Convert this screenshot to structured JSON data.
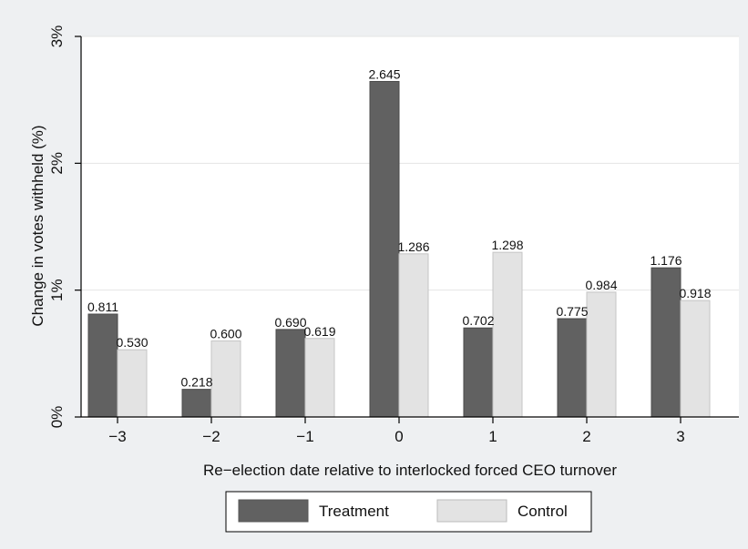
{
  "chart_data": {
    "type": "bar",
    "categories": [
      "−3",
      "−2",
      "−1",
      "0",
      "1",
      "2",
      "3"
    ],
    "series": [
      {
        "name": "Treatment",
        "values": [
          0.811,
          0.218,
          0.69,
          2.645,
          0.702,
          0.775,
          1.176
        ],
        "color": "#616161"
      },
      {
        "name": "Control",
        "values": [
          0.53,
          0.6,
          0.619,
          1.286,
          1.298,
          0.984,
          0.918
        ],
        "color": "#e3e3e3"
      }
    ],
    "data_labels": {
      "Treatment": [
        "0.811",
        "0.218",
        "0.690",
        "2.645",
        "0.702",
        "0.775",
        "1.176"
      ],
      "Control": [
        "0.530",
        "0.600",
        "0.619",
        "1.286",
        "1.298",
        "0.984",
        "0.918"
      ]
    },
    "title": "",
    "xlabel": "Re−election date relative to interlocked forced CEO turnover",
    "ylabel": "Change in votes withheld (%)",
    "ylim": [
      0,
      3
    ],
    "yticks": [
      0,
      1,
      2,
      3
    ],
    "ytick_labels": [
      "0%",
      "1%",
      "2%",
      "3%"
    ],
    "grid": true,
    "legend_position": "bottom",
    "colors": {
      "background": "#eef0f2",
      "plot_background": "#ffffff",
      "grid": "#e4e4e4",
      "bar_outline": "#555555"
    }
  }
}
